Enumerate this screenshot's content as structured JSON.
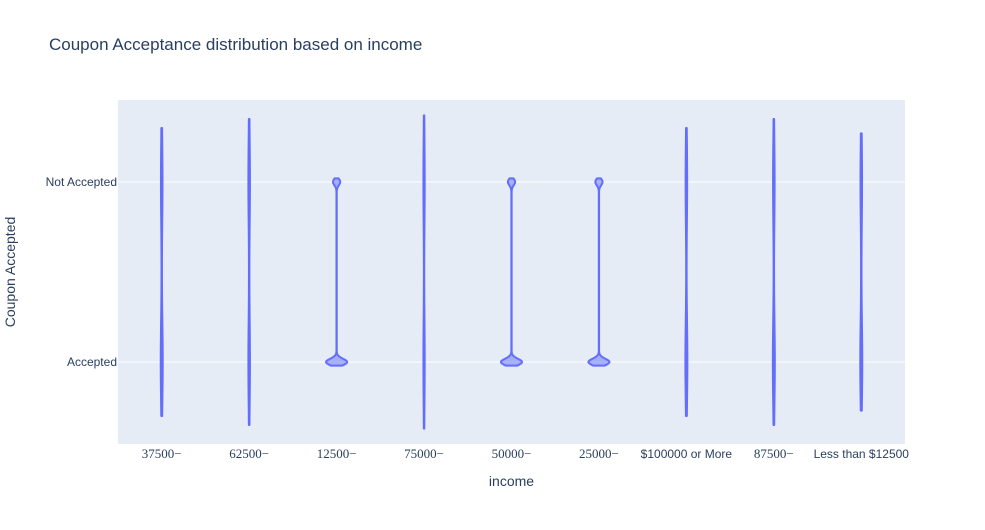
{
  "chart_data": {
    "type": "violin",
    "title": "Coupon Acceptance distribution based on income",
    "xlabel": "income",
    "ylabel": "Coupon Accepted",
    "categories": [
      "37500−",
      "62500−",
      "12500−",
      "75000−",
      "50000−",
      "25000−",
      "$100000 or More",
      "87500−",
      "Less than $12500"
    ],
    "y_categories": [
      "Accepted",
      "Not Accepted"
    ],
    "grid": true,
    "legend": "none",
    "colors": {
      "violin": "#636efa",
      "plot_bg": "#e5ecf6",
      "grid": "#ffffff",
      "text": "#2a3f5f"
    },
    "violins": [
      {
        "category": "37500−",
        "ymin": -0.3,
        "ymax": 1.3,
        "widths": {
          "Accepted": 0.02,
          "Not Accepted": 0.015
        }
      },
      {
        "category": "62500−",
        "ymin": -0.35,
        "ymax": 1.35,
        "widths": {
          "Accepted": 0.015,
          "Not Accepted": 0.015
        }
      },
      {
        "category": "12500−",
        "ymin": -0.02,
        "ymax": 1.02,
        "widths": {
          "Accepted": 0.24,
          "Not Accepted": 0.08
        }
      },
      {
        "category": "75000−",
        "ymin": -0.37,
        "ymax": 1.37,
        "widths": {
          "Accepted": 0.012,
          "Not Accepted": 0.012
        }
      },
      {
        "category": "50000−",
        "ymin": -0.02,
        "ymax": 1.02,
        "widths": {
          "Accepted": 0.24,
          "Not Accepted": 0.08
        }
      },
      {
        "category": "25000−",
        "ymin": -0.02,
        "ymax": 1.02,
        "widths": {
          "Accepted": 0.24,
          "Not Accepted": 0.08
        }
      },
      {
        "category": "$100000 or More",
        "ymin": -0.3,
        "ymax": 1.3,
        "widths": {
          "Accepted": 0.02,
          "Not Accepted": 0.015
        }
      },
      {
        "category": "87500−",
        "ymin": -0.35,
        "ymax": 1.35,
        "widths": {
          "Accepted": 0.02,
          "Not Accepted": 0.015
        }
      },
      {
        "category": "Less than $12500",
        "ymin": -0.27,
        "ymax": 1.27,
        "widths": {
          "Accepted": 0.02,
          "Not Accepted": 0.015
        }
      }
    ]
  }
}
